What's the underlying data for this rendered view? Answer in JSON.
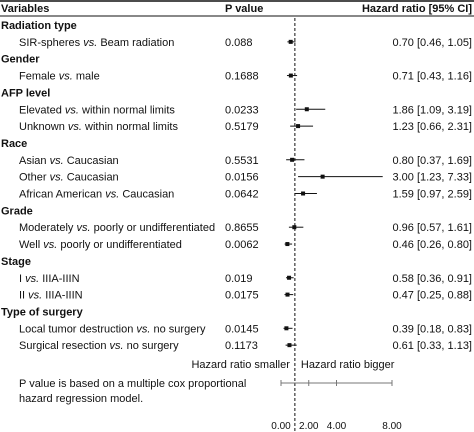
{
  "chart_data": {
    "type": "forest",
    "columns": {
      "variables": "Variables",
      "pvalue": "P value",
      "hazard": "Hazard ratio [95% CI]"
    },
    "groups": [
      {
        "name": "Radiation type",
        "rows": [
          {
            "label_a": "SIR-spheres ",
            "vs": "vs.",
            "label_b": " Beam radiation",
            "p": "0.088",
            "hr_text": "0.70 [0.46, 1.05]",
            "hr": 0.7,
            "lo": 0.46,
            "hi": 1.05
          }
        ]
      },
      {
        "name": "Gender",
        "rows": [
          {
            "label_a": "Female ",
            "vs": "vs.",
            "label_b": " male",
            "p": "0.1688",
            "hr_text": "0.71 [0.43, 1.16]",
            "hr": 0.71,
            "lo": 0.43,
            "hi": 1.16
          }
        ]
      },
      {
        "name": "AFP level",
        "rows": [
          {
            "label_a": "Elevated ",
            "vs": "vs.",
            "label_b": " within normal limits",
            "p": "0.0233",
            "hr_text": "1.86 [1.09, 3.19]",
            "hr": 1.86,
            "lo": 1.09,
            "hi": 3.19
          },
          {
            "label_a": "Unknown ",
            "vs": "vs.",
            "label_b": " within normal limits",
            "p": "0.5179",
            "hr_text": "1.23 [0.66, 2.31]",
            "hr": 1.23,
            "lo": 0.66,
            "hi": 2.31
          }
        ]
      },
      {
        "name": "Race",
        "rows": [
          {
            "label_a": "Asian ",
            "vs": "vs.",
            "label_b": " Caucasian",
            "p": "0.5531",
            "hr_text": "0.80 [0.37, 1.69]",
            "hr": 0.8,
            "lo": 0.37,
            "hi": 1.69
          },
          {
            "label_a": "Other ",
            "vs": "vs.",
            "label_b": " Caucasian",
            "p": "0.0156",
            "hr_text": "3.00 [1.23, 7.33]",
            "hr": 3.0,
            "lo": 1.23,
            "hi": 7.33
          },
          {
            "label_a": "African American ",
            "vs": "vs.",
            "label_b": " Caucasian",
            "p": "0.0642",
            "hr_text": "1.59 [0.97, 2.59]",
            "hr": 1.59,
            "lo": 0.97,
            "hi": 2.59
          }
        ]
      },
      {
        "name": "Grade",
        "rows": [
          {
            "label_a": "Moderately ",
            "vs": "vs.",
            "label_b": " poorly or undifferentiated",
            "p": "0.8655",
            "hr_text": "0.96 [0.57, 1.61]",
            "hr": 0.96,
            "lo": 0.57,
            "hi": 1.61
          },
          {
            "label_a": "Well ",
            "vs": "vs.",
            "label_b": " poorly or undifferentiated",
            "p": "0.0062",
            "hr_text": "0.46 [0.26, 0.80]",
            "hr": 0.46,
            "lo": 0.26,
            "hi": 0.8
          }
        ]
      },
      {
        "name": "Stage",
        "rows": [
          {
            "label_a": "I ",
            "vs": "vs.",
            "label_b": " IIIA-IIIN",
            "p": "0.019",
            "hr_text": "0.58 [0.36, 0.91]",
            "hr": 0.58,
            "lo": 0.36,
            "hi": 0.91
          },
          {
            "label_a": "II ",
            "vs": "vs.",
            "label_b": " IIIA-IIIN",
            "p": "0.0175",
            "hr_text": "0.47 [0.25, 0.88]",
            "hr": 0.47,
            "lo": 0.25,
            "hi": 0.88
          }
        ]
      },
      {
        "name": "Type of surgery",
        "rows": [
          {
            "label_a": "Local tumor destruction ",
            "vs": "vs.",
            "label_b": " no surgery",
            "p": "0.0145",
            "hr_text": "0.39 [0.18, 0.83]",
            "hr": 0.39,
            "lo": 0.18,
            "hi": 0.83
          },
          {
            "label_a": "Surgical resection ",
            "vs": "vs.",
            "label_b": " no surgery",
            "p": "0.1173",
            "hr_text": "0.61 [0.33, 1.13]",
            "hr": 0.61,
            "lo": 0.33,
            "hi": 1.13
          }
        ]
      }
    ],
    "reference_line": 1,
    "direction_labels": {
      "left": "Hazard ratio smaller",
      "right": "Hazard ratio bigger"
    },
    "note_lines": [
      "P value is based on a multiple cox proportional",
      "hazard regression model."
    ],
    "x_ticks": [
      {
        "value": 0,
        "label": "0.00"
      },
      {
        "value": 2,
        "label": "2.00"
      },
      {
        "value": 4,
        "label": "4.00"
      },
      {
        "value": 8,
        "label": "8.00"
      }
    ],
    "xlim": [
      0,
      8
    ],
    "colors": {
      "ink": "#111111",
      "rule": "#111111",
      "axis": "#777777"
    }
  }
}
